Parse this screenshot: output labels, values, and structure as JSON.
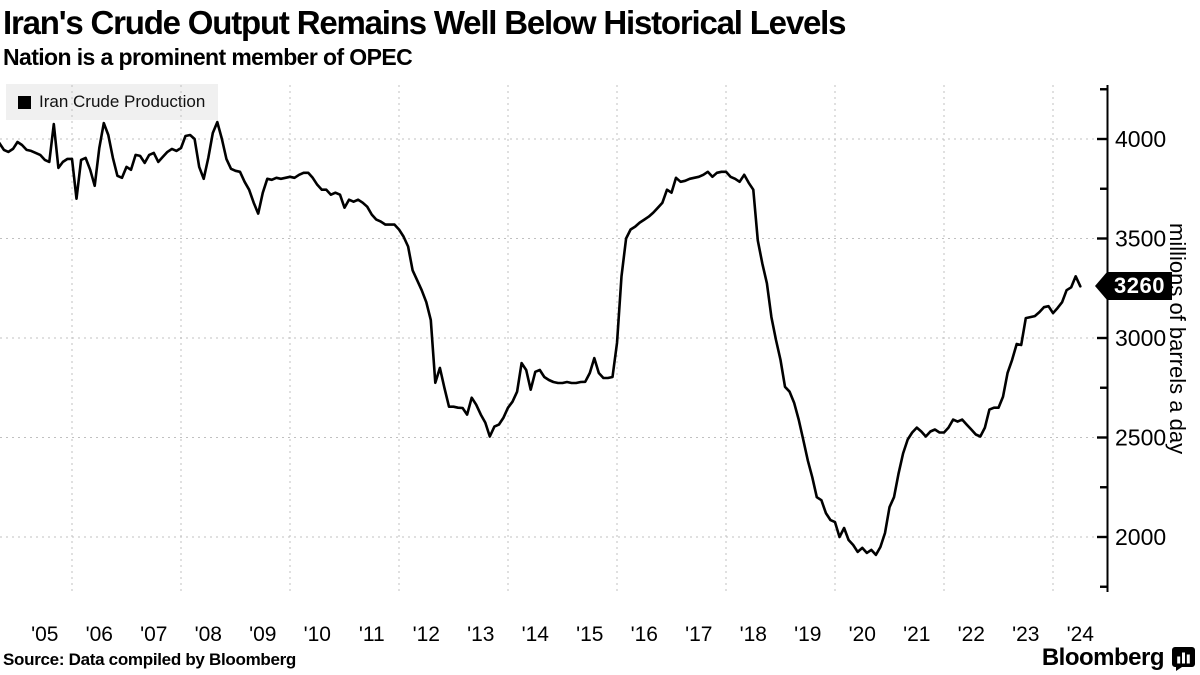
{
  "header": {
    "title": "Iran's Crude Output Remains Well Below Historical Levels",
    "subtitle": "Nation is a prominent member of OPEC"
  },
  "legend": {
    "items": [
      {
        "label": "Iran Crude Production",
        "swatch_color": "#000000"
      }
    ]
  },
  "y_axis": {
    "title": "millions of barrels a day",
    "tick_labels": [
      "2000",
      "2500",
      "3000",
      "3500",
      "4000"
    ],
    "last_value_badge": "3260"
  },
  "x_axis": {
    "tick_labels": [
      "'05",
      "'06",
      "'07",
      "'08",
      "'09",
      "'10",
      "'11",
      "'12",
      "'13",
      "'14",
      "'15",
      "'16",
      "'17",
      "'18",
      "'19",
      "'20",
      "'21",
      "'22",
      "'23",
      "'24"
    ]
  },
  "footer": {
    "source": "Source: Data compiled by Bloomberg",
    "brand": "Bloomberg"
  },
  "colors": {
    "line": "#000000",
    "gridline": "#c0c0c0",
    "axis": "#000000",
    "legend_bg": "#f0f0f0",
    "badge_bg": "#000000",
    "badge_text": "#ffffff"
  },
  "chart_data": {
    "type": "line",
    "title": "Iran's Crude Output Remains Well Below Historical Levels",
    "subtitle": "Nation is a prominent member of OPEC",
    "ylabel": "millions of barrels a day",
    "xlabel": "",
    "grid": true,
    "legend_position": "top-left",
    "ylim": [
      1720,
      4270
    ],
    "y_ticks": [
      2000,
      2500,
      3000,
      3500,
      4000
    ],
    "y_minor_tick_step": 250,
    "x_label_years": [
      2005,
      2006,
      2007,
      2008,
      2009,
      2010,
      2011,
      2012,
      2013,
      2014,
      2015,
      2016,
      2017,
      2018,
      2019,
      2020,
      2021,
      2022,
      2023,
      2024
    ],
    "x_gridline_years": [
      2006,
      2008,
      2010,
      2012,
      2014,
      2016,
      2018,
      2020,
      2022,
      2024
    ],
    "last_value": 3260,
    "series": [
      {
        "name": "Iran Crude Production",
        "color": "#000000",
        "frequency": "monthly",
        "start": "2004-09",
        "end": "2024-07",
        "values": [
          3980,
          3945,
          3935,
          3950,
          3985,
          3970,
          3945,
          3940,
          3930,
          3920,
          3895,
          3885,
          4075,
          3855,
          3885,
          3900,
          3900,
          3700,
          3895,
          3905,
          3845,
          3765,
          3955,
          4080,
          4020,
          3905,
          3815,
          3805,
          3860,
          3845,
          3920,
          3915,
          3880,
          3920,
          3930,
          3885,
          3910,
          3935,
          3950,
          3940,
          3955,
          4015,
          4020,
          4000,
          3860,
          3800,
          3905,
          4030,
          4085,
          4000,
          3900,
          3850,
          3840,
          3835,
          3785,
          3745,
          3680,
          3625,
          3730,
          3800,
          3795,
          3805,
          3800,
          3805,
          3810,
          3805,
          3820,
          3830,
          3830,
          3805,
          3770,
          3745,
          3745,
          3720,
          3730,
          3720,
          3655,
          3695,
          3685,
          3695,
          3680,
          3660,
          3620,
          3595,
          3585,
          3570,
          3570,
          3570,
          3545,
          3510,
          3460,
          3340,
          3290,
          3240,
          3180,
          3090,
          2775,
          2850,
          2750,
          2655,
          2655,
          2650,
          2648,
          2615,
          2700,
          2665,
          2615,
          2575,
          2505,
          2555,
          2565,
          2600,
          2650,
          2680,
          2730,
          2874,
          2839,
          2740,
          2830,
          2839,
          2804,
          2789,
          2779,
          2774,
          2774,
          2779,
          2774,
          2774,
          2779,
          2780,
          2824,
          2899,
          2824,
          2799,
          2799,
          2804,
          2975,
          3310,
          3500,
          3545,
          3560,
          3580,
          3595,
          3610,
          3630,
          3655,
          3680,
          3745,
          3730,
          3805,
          3785,
          3790,
          3800,
          3805,
          3810,
          3820,
          3835,
          3810,
          3830,
          3835,
          3835,
          3810,
          3800,
          3785,
          3820,
          3780,
          3745,
          3490,
          3375,
          3275,
          3105,
          2990,
          2890,
          2755,
          2730,
          2675,
          2590,
          2490,
          2385,
          2300,
          2200,
          2185,
          2120,
          2085,
          2075,
          2000,
          2045,
          1985,
          1960,
          1925,
          1945,
          1920,
          1935,
          1910,
          1950,
          2020,
          2150,
          2200,
          2320,
          2420,
          2490,
          2525,
          2550,
          2530,
          2505,
          2530,
          2540,
          2525,
          2525,
          2550,
          2590,
          2580,
          2590,
          2565,
          2540,
          2515,
          2505,
          2550,
          2640,
          2650,
          2650,
          2705,
          2825,
          2890,
          2970,
          2965,
          3100,
          3105,
          3110,
          3130,
          3155,
          3160,
          3125,
          3150,
          3180,
          3240,
          3255,
          3310,
          3260
        ]
      }
    ]
  }
}
